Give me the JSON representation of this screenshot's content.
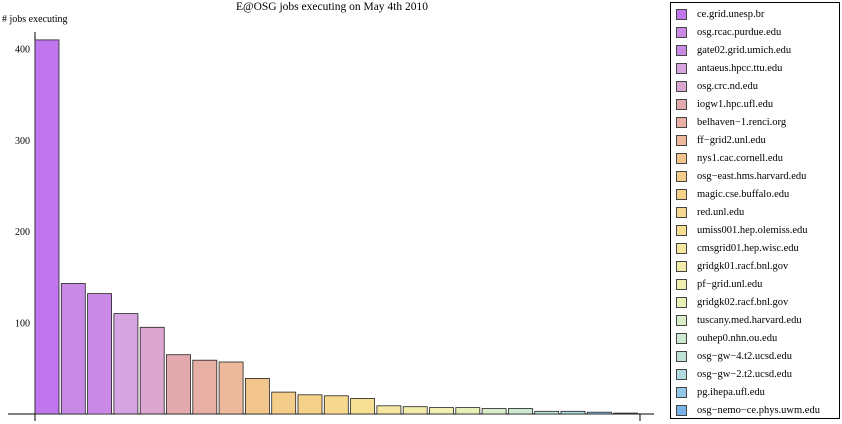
{
  "chart_data": {
    "type": "bar",
    "title": "E@OSG jobs executing on May 4th 2010",
    "ylabel": "# jobs executing",
    "xlabel": "",
    "ylim": [
      0,
      420
    ],
    "yticks": [
      100,
      200,
      300,
      400
    ],
    "grid": false,
    "legend_placement": "right",
    "categories": [
      "ce.grid.unesp.br",
      "osg.rcac.purdue.edu",
      "gate02.grid.umich.edu",
      "antaeus.hpcc.ttu.edu",
      "osg.crc.nd.edu",
      "iogw1.hpc.ufl.edu",
      "belhaven−1.renci.org",
      "ff−grid2.unl.edu",
      "nys1.cac.cornell.edu",
      "osg−east.hms.harvard.edu",
      "magic.cse.buffalo.edu",
      "red.unl.edu",
      "umiss001.hep.olemiss.edu",
      "cmsgrid01.hep.wisc.edu",
      "gridgk01.racf.bnl.gov",
      "pf−grid.unl.edu",
      "gridgk02.racf.bnl.gov",
      "tuscany.med.harvard.edu",
      "ouhep0.nhn.ou.edu",
      "osg−gw−4.t2.ucsd.edu",
      "osg−gw−2.t2.ucsd.edu",
      "pg.ihepa.ufl.edu",
      "osg−nemo−ce.phys.uwm.edu"
    ],
    "values": [
      410,
      143,
      132,
      110,
      95,
      65,
      59,
      57,
      39,
      24,
      21,
      20,
      17,
      9,
      8,
      7,
      7,
      6,
      6,
      3,
      3,
      2,
      1
    ],
    "colors": [
      "#c077ee",
      "#c98ae6",
      "#c98ae6",
      "#d6a4e0",
      "#dba6cf",
      "#e2aaaf",
      "#e8b0a5",
      "#edb99d",
      "#f1c58c",
      "#f4cd8a",
      "#f5d18a",
      "#f6d890",
      "#f6df93",
      "#f5e7a0",
      "#f2ebaa",
      "#eeefb0",
      "#e8f0b7",
      "#d8edc8",
      "#cde9cf",
      "#bfe3d8",
      "#b0dbe0",
      "#92c7e7",
      "#79b2e6"
    ]
  }
}
